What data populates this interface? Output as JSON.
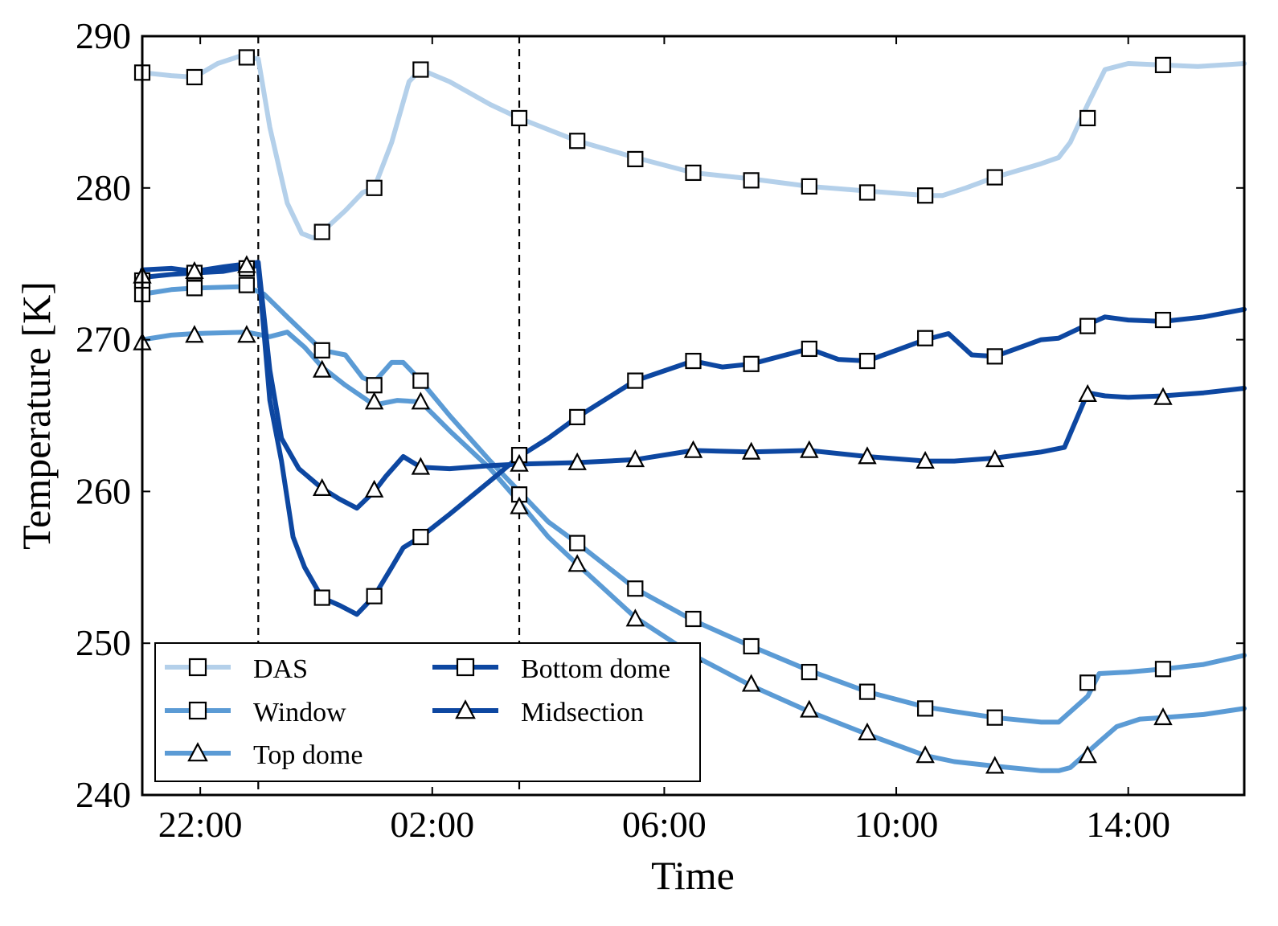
{
  "chart_data": {
    "type": "line",
    "title": "",
    "xlabel": "Time",
    "ylabel": "Temperature [K]",
    "x_unit": "hours since 00:00 (negative = previous evening)",
    "xlim": [
      -3.0,
      16.0
    ],
    "ylim": [
      240,
      290
    ],
    "x_ticks": [
      {
        "value": -2,
        "label": "22:00"
      },
      {
        "value": 2,
        "label": "02:00"
      },
      {
        "value": 6,
        "label": "06:00"
      },
      {
        "value": 10,
        "label": "10:00"
      },
      {
        "value": 14,
        "label": "14:00"
      }
    ],
    "y_ticks": [
      {
        "value": 240,
        "label": "240"
      },
      {
        "value": 250,
        "label": "250"
      },
      {
        "value": 260,
        "label": "260"
      },
      {
        "value": 270,
        "label": "270"
      },
      {
        "value": 280,
        "label": "280"
      },
      {
        "value": 290,
        "label": "290"
      }
    ],
    "vlines": [
      -1.0,
      3.5
    ],
    "legend_placement": "lower-left",
    "series": [
      {
        "name": "DAS",
        "color": "#b4d0ea",
        "marker": "square",
        "points": [
          [
            -3.0,
            287.6
          ],
          [
            -2.5,
            287.4
          ],
          [
            -2.1,
            287.3
          ],
          [
            -1.7,
            288.2
          ],
          [
            -1.3,
            288.7
          ],
          [
            -1.0,
            288.5
          ],
          [
            -0.8,
            284.0
          ],
          [
            -0.5,
            279.0
          ],
          [
            -0.25,
            277.0
          ],
          [
            -0.05,
            276.7
          ],
          [
            0.1,
            277.1
          ],
          [
            0.5,
            278.5
          ],
          [
            0.8,
            279.7
          ],
          [
            1.0,
            280.0
          ],
          [
            1.3,
            283.0
          ],
          [
            1.6,
            287.0
          ],
          [
            1.8,
            287.8
          ],
          [
            2.3,
            287.0
          ],
          [
            3.0,
            285.5
          ],
          [
            3.5,
            284.6
          ],
          [
            4.5,
            283.1
          ],
          [
            5.5,
            282.0
          ],
          [
            6.5,
            281.0
          ],
          [
            7.5,
            280.6
          ],
          [
            8.5,
            280.1
          ],
          [
            9.5,
            279.8
          ],
          [
            10.5,
            279.5
          ],
          [
            10.8,
            279.5
          ],
          [
            11.2,
            280.0
          ],
          [
            11.7,
            280.7
          ],
          [
            12.5,
            281.6
          ],
          [
            12.8,
            282.0
          ],
          [
            13.0,
            283.0
          ],
          [
            13.3,
            285.5
          ],
          [
            13.6,
            287.8
          ],
          [
            14.0,
            288.2
          ],
          [
            14.6,
            288.1
          ],
          [
            15.2,
            288.0
          ],
          [
            16.0,
            288.2
          ]
        ],
        "markers": [
          [
            -3.0,
            287.6
          ],
          [
            -2.1,
            287.3
          ],
          [
            -1.2,
            288.6
          ],
          [
            0.1,
            277.1
          ],
          [
            1.0,
            280.0
          ],
          [
            1.8,
            287.8
          ],
          [
            3.5,
            284.6
          ],
          [
            4.5,
            283.1
          ],
          [
            5.5,
            281.9
          ],
          [
            6.5,
            281.0
          ],
          [
            7.5,
            280.5
          ],
          [
            8.5,
            280.1
          ],
          [
            9.5,
            279.7
          ],
          [
            10.5,
            279.5
          ],
          [
            11.7,
            280.7
          ],
          [
            13.3,
            284.6
          ],
          [
            14.6,
            288.1
          ]
        ]
      },
      {
        "name": "Window",
        "color": "#5b9bd5",
        "marker": "square",
        "points": [
          [
            -3.0,
            273.0
          ],
          [
            -2.5,
            273.3
          ],
          [
            -2.1,
            273.4
          ],
          [
            -1.2,
            273.5
          ],
          [
            -0.9,
            273.0
          ],
          [
            -0.5,
            271.5
          ],
          [
            0.1,
            269.3
          ],
          [
            0.5,
            269.0
          ],
          [
            0.8,
            267.5
          ],
          [
            1.0,
            267.2
          ],
          [
            1.3,
            268.5
          ],
          [
            1.5,
            268.5
          ],
          [
            1.8,
            267.3
          ],
          [
            2.3,
            265.0
          ],
          [
            3.0,
            262.0
          ],
          [
            3.5,
            260.0
          ],
          [
            4.0,
            258.0
          ],
          [
            4.5,
            256.6
          ],
          [
            5.5,
            253.6
          ],
          [
            6.5,
            251.5
          ],
          [
            7.5,
            249.8
          ],
          [
            8.5,
            248.2
          ],
          [
            9.5,
            246.8
          ],
          [
            10.5,
            245.8
          ],
          [
            11.0,
            245.5
          ],
          [
            11.7,
            245.1
          ],
          [
            12.5,
            244.8
          ],
          [
            12.8,
            244.8
          ],
          [
            13.3,
            246.5
          ],
          [
            13.5,
            248.0
          ],
          [
            14.0,
            248.1
          ],
          [
            14.6,
            248.3
          ],
          [
            15.3,
            248.6
          ],
          [
            16.0,
            249.2
          ]
        ],
        "markers": [
          [
            -3.0,
            273.0
          ],
          [
            -2.1,
            273.4
          ],
          [
            -1.2,
            273.6
          ],
          [
            0.1,
            269.3
          ],
          [
            1.0,
            267.0
          ],
          [
            1.8,
            267.3
          ],
          [
            3.5,
            259.8
          ],
          [
            4.5,
            256.6
          ],
          [
            5.5,
            253.6
          ],
          [
            6.5,
            251.6
          ],
          [
            7.5,
            249.8
          ],
          [
            8.5,
            248.1
          ],
          [
            9.5,
            246.8
          ],
          [
            10.5,
            245.7
          ],
          [
            11.7,
            245.1
          ],
          [
            13.3,
            247.4
          ],
          [
            14.6,
            248.3
          ]
        ]
      },
      {
        "name": "Top dome",
        "color": "#5b9bd5",
        "marker": "triangle",
        "points": [
          [
            -3.0,
            270.0
          ],
          [
            -2.5,
            270.3
          ],
          [
            -2.1,
            270.4
          ],
          [
            -1.2,
            270.5
          ],
          [
            -0.8,
            270.2
          ],
          [
            -0.5,
            270.5
          ],
          [
            -0.2,
            269.5
          ],
          [
            0.1,
            268.2
          ],
          [
            0.5,
            267.0
          ],
          [
            1.0,
            265.7
          ],
          [
            1.4,
            266.0
          ],
          [
            1.8,
            265.9
          ],
          [
            2.3,
            264.0
          ],
          [
            3.0,
            261.5
          ],
          [
            3.5,
            259.3
          ],
          [
            4.0,
            257.0
          ],
          [
            4.5,
            255.2
          ],
          [
            5.5,
            251.7
          ],
          [
            6.5,
            249.2
          ],
          [
            7.5,
            247.2
          ],
          [
            8.5,
            245.5
          ],
          [
            9.5,
            244.0
          ],
          [
            10.5,
            242.6
          ],
          [
            11.0,
            242.2
          ],
          [
            11.7,
            241.9
          ],
          [
            12.5,
            241.6
          ],
          [
            12.8,
            241.6
          ],
          [
            13.0,
            241.8
          ],
          [
            13.5,
            243.5
          ],
          [
            13.8,
            244.5
          ],
          [
            14.2,
            245.0
          ],
          [
            14.6,
            245.1
          ],
          [
            15.3,
            245.3
          ],
          [
            16.0,
            245.7
          ]
        ],
        "markers": [
          [
            -3.0,
            269.8
          ],
          [
            -2.1,
            270.3
          ],
          [
            -1.2,
            270.3
          ],
          [
            0.1,
            268.0
          ],
          [
            1.0,
            265.9
          ],
          [
            1.8,
            265.9
          ],
          [
            3.5,
            259.0
          ],
          [
            4.5,
            255.2
          ],
          [
            5.5,
            251.6
          ],
          [
            6.5,
            249.2
          ],
          [
            7.5,
            247.3
          ],
          [
            8.5,
            245.6
          ],
          [
            9.5,
            244.1
          ],
          [
            10.5,
            242.6
          ],
          [
            11.7,
            241.9
          ],
          [
            13.3,
            242.6
          ],
          [
            14.6,
            245.1
          ]
        ]
      },
      {
        "name": "Bottom dome",
        "color": "#0d47a1",
        "marker": "square",
        "points": [
          [
            -3.0,
            274.1
          ],
          [
            -2.5,
            274.3
          ],
          [
            -2.1,
            274.4
          ],
          [
            -1.6,
            274.5
          ],
          [
            -1.2,
            274.8
          ],
          [
            -1.0,
            274.9
          ],
          [
            -0.8,
            266.0
          ],
          [
            -0.6,
            262.0
          ],
          [
            -0.4,
            257.0
          ],
          [
            -0.2,
            255.0
          ],
          [
            0.1,
            253.0
          ],
          [
            0.4,
            252.5
          ],
          [
            0.7,
            251.9
          ],
          [
            1.0,
            253.1
          ],
          [
            1.3,
            255.0
          ],
          [
            1.5,
            256.3
          ],
          [
            1.8,
            257.0
          ],
          [
            2.3,
            258.5
          ],
          [
            3.0,
            260.7
          ],
          [
            3.5,
            262.3
          ],
          [
            4.0,
            263.5
          ],
          [
            4.5,
            264.9
          ],
          [
            5.5,
            267.3
          ],
          [
            6.5,
            268.6
          ],
          [
            7.0,
            268.2
          ],
          [
            7.5,
            268.4
          ],
          [
            8.5,
            269.4
          ],
          [
            9.0,
            268.7
          ],
          [
            9.5,
            268.6
          ],
          [
            10.5,
            270.0
          ],
          [
            10.9,
            270.4
          ],
          [
            11.3,
            269.0
          ],
          [
            11.7,
            268.9
          ],
          [
            12.5,
            270.0
          ],
          [
            12.8,
            270.1
          ],
          [
            13.3,
            271.0
          ],
          [
            13.6,
            271.5
          ],
          [
            14.0,
            271.3
          ],
          [
            14.6,
            271.2
          ],
          [
            15.3,
            271.5
          ],
          [
            16.0,
            272.0
          ]
        ],
        "markers": [
          [
            -3.0,
            273.9
          ],
          [
            -2.1,
            274.4
          ],
          [
            -1.2,
            274.7
          ],
          [
            0.1,
            253.0
          ],
          [
            1.0,
            253.1
          ],
          [
            1.8,
            257.0
          ],
          [
            3.5,
            262.4
          ],
          [
            4.5,
            264.9
          ],
          [
            5.5,
            267.3
          ],
          [
            6.5,
            268.6
          ],
          [
            7.5,
            268.4
          ],
          [
            8.5,
            269.4
          ],
          [
            9.5,
            268.6
          ],
          [
            10.5,
            270.1
          ],
          [
            11.7,
            268.9
          ],
          [
            13.3,
            270.9
          ],
          [
            14.6,
            271.3
          ]
        ]
      },
      {
        "name": "Midsection",
        "color": "#0d47a1",
        "marker": "triangle",
        "points": [
          [
            -3.0,
            274.6
          ],
          [
            -2.5,
            274.7
          ],
          [
            -2.1,
            274.5
          ],
          [
            -1.6,
            274.8
          ],
          [
            -1.2,
            275.0
          ],
          [
            -1.0,
            275.1
          ],
          [
            -0.8,
            268.0
          ],
          [
            -0.6,
            263.5
          ],
          [
            -0.3,
            261.5
          ],
          [
            0.1,
            260.2
          ],
          [
            0.4,
            259.5
          ],
          [
            0.7,
            258.9
          ],
          [
            1.0,
            260.0
          ],
          [
            1.2,
            261.0
          ],
          [
            1.5,
            262.3
          ],
          [
            1.8,
            261.6
          ],
          [
            2.3,
            261.5
          ],
          [
            3.0,
            261.7
          ],
          [
            3.5,
            261.8
          ],
          [
            4.5,
            261.9
          ],
          [
            5.5,
            262.1
          ],
          [
            6.5,
            262.7
          ],
          [
            7.5,
            262.6
          ],
          [
            8.5,
            262.7
          ],
          [
            9.5,
            262.3
          ],
          [
            10.5,
            262.0
          ],
          [
            11.0,
            262.0
          ],
          [
            11.7,
            262.2
          ],
          [
            12.5,
            262.6
          ],
          [
            12.9,
            262.9
          ],
          [
            13.3,
            266.5
          ],
          [
            13.6,
            266.3
          ],
          [
            14.0,
            266.2
          ],
          [
            14.6,
            266.3
          ],
          [
            15.3,
            266.5
          ],
          [
            16.0,
            266.8
          ]
        ],
        "markers": [
          [
            -3.0,
            274.2
          ],
          [
            -2.1,
            274.5
          ],
          [
            -1.2,
            274.9
          ],
          [
            0.1,
            260.2
          ],
          [
            1.0,
            260.1
          ],
          [
            1.8,
            261.6
          ],
          [
            3.5,
            261.8
          ],
          [
            4.5,
            261.9
          ],
          [
            5.5,
            262.1
          ],
          [
            6.5,
            262.7
          ],
          [
            7.5,
            262.6
          ],
          [
            8.5,
            262.7
          ],
          [
            9.5,
            262.3
          ],
          [
            10.5,
            262.0
          ],
          [
            11.7,
            262.1
          ],
          [
            13.3,
            266.4
          ],
          [
            14.6,
            266.2
          ]
        ]
      }
    ]
  }
}
